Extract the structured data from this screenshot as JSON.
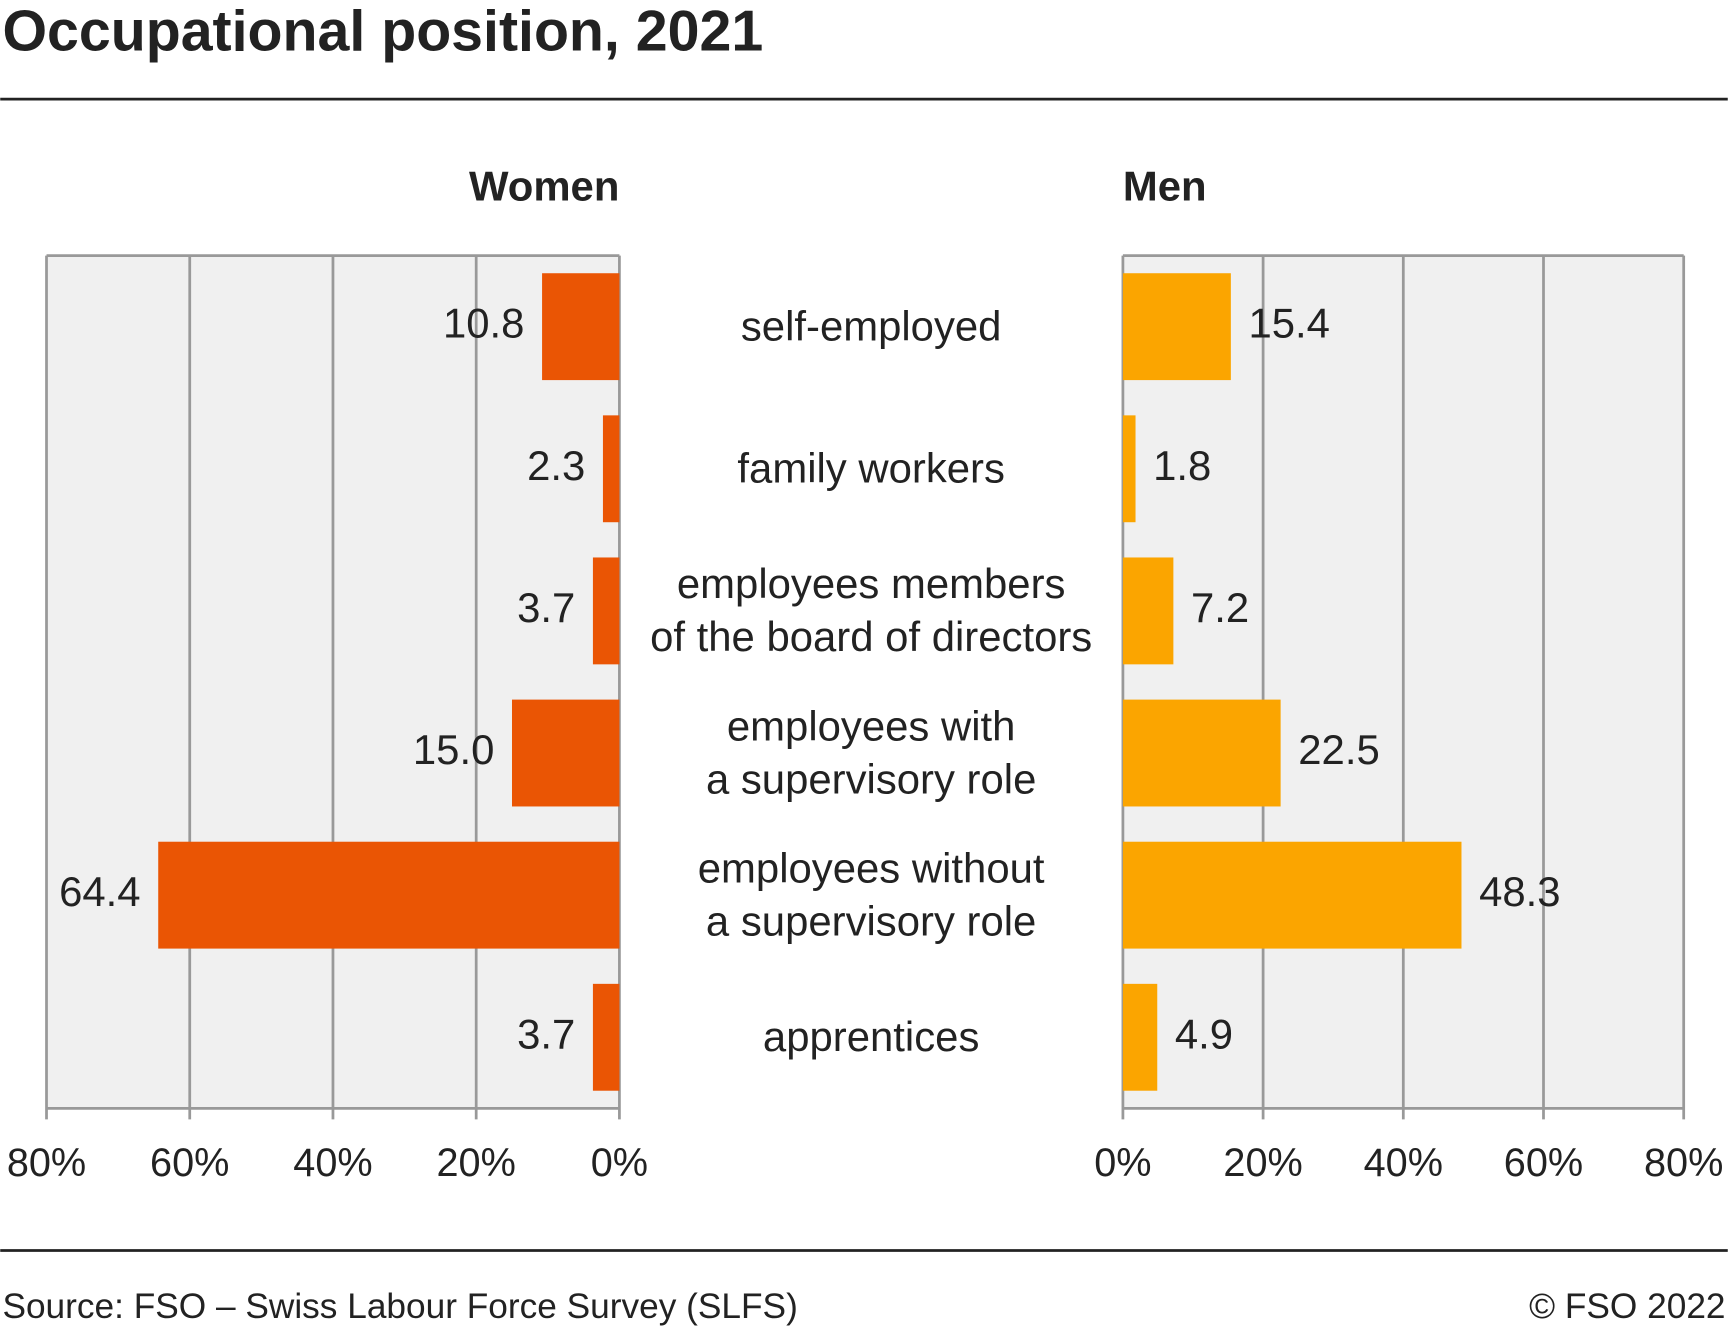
{
  "chart_data": {
    "type": "butterfly-bar",
    "title": "Occupational position, 2021",
    "categories": [
      "self-employed",
      "family workers",
      "employees members\nof the board of directors",
      "employees with\na supervisory role",
      "employees without\na supervisory role",
      "apprentices"
    ],
    "series": [
      {
        "name": "Women",
        "color": "#ea5504",
        "values": [
          10.8,
          2.3,
          3.7,
          15.0,
          64.4,
          3.7
        ],
        "value_labels": [
          "10.8",
          "2.3",
          "3.7",
          "15.0",
          "64.4",
          "3.7"
        ]
      },
      {
        "name": "Men",
        "color": "#fba500",
        "values": [
          15.4,
          1.8,
          7.2,
          22.5,
          48.3,
          4.9
        ],
        "value_labels": [
          "15.4",
          "1.8",
          "7.2",
          "22.5",
          "48.3",
          "4.9"
        ]
      }
    ],
    "xlim": [
      0,
      80
    ],
    "xticks": [
      {
        "value": 0,
        "label": "0%"
      },
      {
        "value": 20,
        "label": "20%"
      },
      {
        "value": 40,
        "label": "40%"
      },
      {
        "value": 60,
        "label": "60%"
      },
      {
        "value": 80,
        "label": "80%"
      }
    ],
    "grid": true,
    "source": "Source: FSO – Swiss Labour Force Survey (SLFS)",
    "copyright": "© FSO 2022"
  }
}
